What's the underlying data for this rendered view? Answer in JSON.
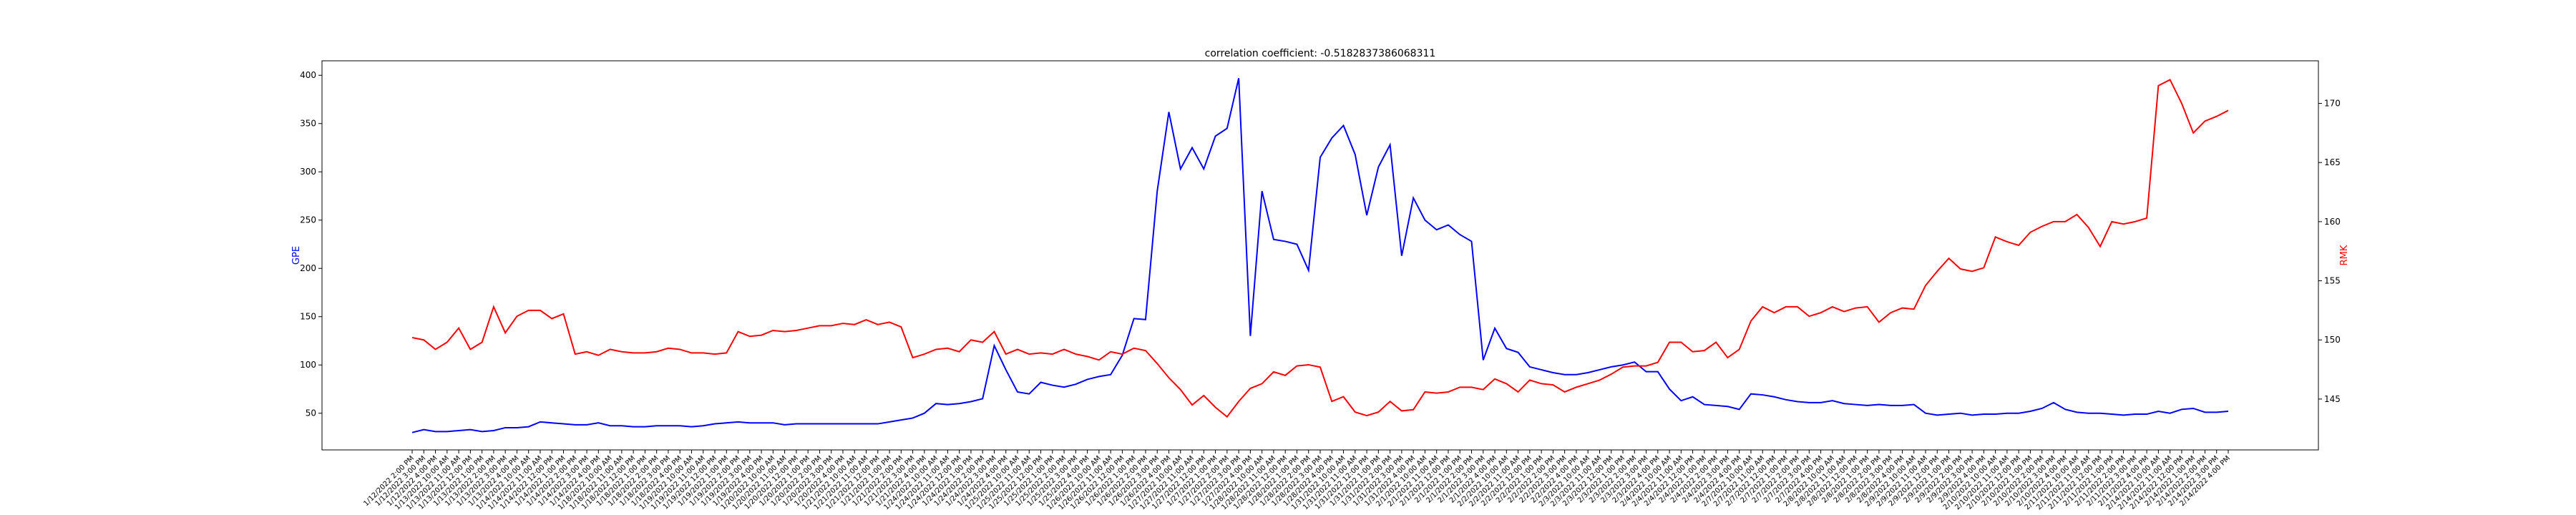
{
  "chart_data": {
    "type": "line",
    "title": "correlation coefficient: -0.5182837386068311",
    "y_label": "GPE",
    "y2_label": "RMK",
    "categories": [
      "1/12/2022 2:00 PM",
      "1/12/2022 3:00 PM",
      "1/12/2022 4:00 PM",
      "1/13/2022 10:00 AM",
      "1/13/2022 11:00 AM",
      "1/13/2022 12:00 PM",
      "1/13/2022 1:00 PM",
      "1/13/2022 2:00 PM",
      "1/13/2022 3:00 PM",
      "1/13/2022 4:00 PM",
      "1/14/2022 10:00 AM",
      "1/14/2022 11:00 AM",
      "1/14/2022 12:00 PM",
      "1/14/2022 1:00 PM",
      "1/14/2022 2:00 PM",
      "1/14/2022 3:00 PM",
      "1/14/2022 4:00 PM",
      "1/18/2022 10:00 AM",
      "1/18/2022 11:00 AM",
      "1/18/2022 12:00 PM",
      "1/18/2022 1:00 PM",
      "1/18/2022 2:00 PM",
      "1/18/2022 3:00 PM",
      "1/18/2022 4:00 PM",
      "1/19/2022 10:00 AM",
      "1/19/2022 11:00 AM",
      "1/19/2022 12:00 PM",
      "1/19/2022 1:00 PM",
      "1/19/2022 2:00 PM",
      "1/19/2022 3:00 PM",
      "1/19/2022 4:00 PM",
      "1/20/2022 10:00 AM",
      "1/20/2022 11:00 AM",
      "1/20/2022 12:00 PM",
      "1/20/2022 1:00 PM",
      "1/20/2022 2:00 PM",
      "1/20/2022 3:00 PM",
      "1/20/2022 4:00 PM",
      "1/21/2022 10:00 AM",
      "1/21/2022 11:00 AM",
      "1/21/2022 12:00 PM",
      "1/21/2022 1:00 PM",
      "1/21/2022 2:00 PM",
      "1/21/2022 3:00 PM",
      "1/21/2022 4:00 PM",
      "1/24/2022 10:00 AM",
      "1/24/2022 11:00 AM",
      "1/24/2022 12:00 PM",
      "1/24/2022 1:00 PM",
      "1/24/2022 2:00 PM",
      "1/24/2022 3:00 PM",
      "1/24/2022 4:00 PM",
      "1/25/2022 10:00 AM",
      "1/25/2022 11:00 AM",
      "1/25/2022 12:00 PM",
      "1/25/2022 1:00 PM",
      "1/25/2022 2:00 PM",
      "1/25/2022 3:00 PM",
      "1/25/2022 4:00 PM",
      "1/26/2022 10:00 AM",
      "1/26/2022 11:00 AM",
      "1/26/2022 12:00 PM",
      "1/26/2022 1:00 PM",
      "1/26/2022 2:00 PM",
      "1/26/2022 3:00 PM",
      "1/26/2022 4:00 PM",
      "1/27/2022 10:00 AM",
      "1/27/2022 11:00 AM",
      "1/27/2022 12:00 PM",
      "1/27/2022 1:00 PM",
      "1/27/2022 2:00 PM",
      "1/27/2022 3:00 PM",
      "1/27/2022 4:00 PM",
      "1/28/2022 10:00 AM",
      "1/28/2022 11:00 AM",
      "1/28/2022 12:00 PM",
      "1/28/2022 1:00 PM",
      "1/28/2022 2:00 PM",
      "1/28/2022 3:00 PM",
      "1/28/2022 4:00 PM",
      "1/31/2022 10:00 AM",
      "1/31/2022 11:00 AM",
      "1/31/2022 12:00 PM",
      "1/31/2022 1:00 PM",
      "1/31/2022 2:00 PM",
      "1/31/2022 3:00 PM",
      "1/31/2022 4:00 PM",
      "2/1/2022 10:00 AM",
      "2/1/2022 11:00 AM",
      "2/1/2022 12:00 PM",
      "2/1/2022 1:00 PM",
      "2/1/2022 2:00 PM",
      "2/1/2022 3:00 PM",
      "2/1/2022 4:00 PM",
      "2/2/2022 10:00 AM",
      "2/2/2022 11:00 AM",
      "2/2/2022 12:00 PM",
      "2/2/2022 1:00 PM",
      "2/2/2022 2:00 PM",
      "2/2/2022 3:00 PM",
      "2/2/2022 4:00 PM",
      "2/3/2022 10:00 AM",
      "2/3/2022 11:00 AM",
      "2/3/2022 12:00 PM",
      "2/3/2022 1:00 PM",
      "2/3/2022 2:00 PM",
      "2/3/2022 3:00 PM",
      "2/3/2022 4:00 PM",
      "2/4/2022 10:00 AM",
      "2/4/2022 11:00 AM",
      "2/4/2022 12:00 PM",
      "2/4/2022 1:00 PM",
      "2/4/2022 2:00 PM",
      "2/4/2022 3:00 PM",
      "2/4/2022 4:00 PM",
      "2/7/2022 10:00 AM",
      "2/7/2022 11:00 AM",
      "2/7/2022 12:00 PM",
      "2/7/2022 1:00 PM",
      "2/7/2022 2:00 PM",
      "2/7/2022 3:00 PM",
      "2/7/2022 4:00 PM",
      "2/8/2022 10:00 AM",
      "2/8/2022 11:00 AM",
      "2/8/2022 12:00 PM",
      "2/8/2022 1:00 PM",
      "2/8/2022 2:00 PM",
      "2/8/2022 3:00 PM",
      "2/8/2022 4:00 PM",
      "2/9/2022 10:00 AM",
      "2/9/2022 11:00 AM",
      "2/9/2022 12:00 PM",
      "2/9/2022 1:00 PM",
      "2/9/2022 2:00 PM",
      "2/9/2022 3:00 PM",
      "2/9/2022 4:00 PM",
      "2/10/2022 10:00 AM",
      "2/10/2022 11:00 AM",
      "2/10/2022 12:00 PM",
      "2/10/2022 1:00 PM",
      "2/10/2022 2:00 PM",
      "2/10/2022 3:00 PM",
      "2/10/2022 4:00 PM",
      "2/11/2022 10:00 AM",
      "2/11/2022 11:00 AM",
      "2/11/2022 12:00 PM",
      "2/11/2022 1:00 PM",
      "2/11/2022 2:00 PM",
      "2/11/2022 3:00 PM",
      "2/11/2022 4:00 PM",
      "2/14/2022 10:00 AM",
      "2/14/2022 11:00 AM",
      "2/14/2022 12:00 PM",
      "2/14/2022 1:00 PM",
      "2/14/2022 2:00 PM",
      "2/14/2022 3:00 PM",
      "2/14/2022 4:00 PM"
    ],
    "series": [
      {
        "name": "GPE",
        "color": "#0000ff",
        "axis": "y",
        "values": [
          30,
          33,
          31,
          31,
          32,
          33,
          31,
          32,
          35,
          35,
          36,
          41,
          40,
          39,
          38,
          38,
          40,
          37,
          37,
          36,
          36,
          37,
          37,
          37,
          36,
          37,
          39,
          40,
          41,
          40,
          40,
          40,
          38,
          39,
          39,
          39,
          39,
          39,
          39,
          39,
          39,
          41,
          43,
          45,
          50,
          60,
          59,
          60,
          62,
          65,
          120,
          95,
          72,
          70,
          82,
          79,
          77,
          80,
          85,
          88,
          90,
          110,
          148,
          147,
          280,
          362,
          303,
          325,
          303,
          337,
          345,
          397,
          130,
          280,
          230,
          228,
          225,
          198,
          315,
          335,
          348,
          318,
          255,
          305,
          328,
          213,
          273,
          250,
          240,
          245,
          235,
          228,
          105,
          138,
          117,
          113,
          98,
          95,
          92,
          90,
          90,
          92,
          95,
          98,
          100,
          103,
          93,
          93,
          75,
          63,
          67,
          59,
          58,
          57,
          54,
          70,
          69,
          67,
          64,
          62,
          61,
          61,
          63,
          60,
          59,
          58,
          59,
          58,
          58,
          59,
          50,
          48,
          49,
          50,
          48,
          49,
          49,
          50,
          50,
          52,
          55,
          61,
          54,
          51,
          50,
          50,
          49,
          48,
          49,
          49,
          52,
          50,
          54,
          55,
          51,
          51,
          52
        ]
      },
      {
        "name": "RMK",
        "color": "#ff0000",
        "axis": "y2",
        "values": [
          150.2,
          150,
          149.2,
          149.8,
          151,
          149.2,
          149.8,
          152.8,
          150.6,
          152,
          152.5,
          152.5,
          151.8,
          152.2,
          148.8,
          149,
          148.7,
          149.2,
          149,
          148.9,
          148.9,
          149,
          149.3,
          149.2,
          148.9,
          148.9,
          148.8,
          148.9,
          150.7,
          150.3,
          150.4,
          150.8,
          150.7,
          150.8,
          151,
          151.2,
          151.2,
          151.4,
          151.3,
          151.7,
          151.3,
          151.5,
          151.1,
          148.5,
          148.8,
          149.2,
          149.3,
          149,
          150,
          149.8,
          150.7,
          148.8,
          149.2,
          148.8,
          148.9,
          148.8,
          149.2,
          148.8,
          148.6,
          148.3,
          149,
          148.8,
          149.3,
          149.1,
          148,
          146.8,
          145.8,
          144.5,
          145.3,
          144.3,
          143.5,
          144.8,
          145.9,
          146.3,
          147.3,
          147,
          147.8,
          147.9,
          147.7,
          144.8,
          145.2,
          143.9,
          143.6,
          143.9,
          144.8,
          144,
          144.1,
          145.6,
          145.5,
          145.6,
          146,
          146,
          145.8,
          146.7,
          146.3,
          145.6,
          146.6,
          146.3,
          146.2,
          145.6,
          146,
          146.3,
          146.6,
          147.1,
          147.7,
          147.8,
          147.8,
          148.1,
          149.8,
          149.8,
          149,
          149.1,
          149.8,
          148.5,
          149.2,
          151.6,
          152.8,
          152.3,
          152.8,
          152.8,
          152,
          152.3,
          152.8,
          152.4,
          152.7,
          152.8,
          151.5,
          152.3,
          152.7,
          152.6,
          154.6,
          155.8,
          156.9,
          156,
          155.8,
          156.1,
          158.7,
          158.3,
          158,
          159.1,
          159.6,
          160,
          160,
          160.6,
          159.5,
          157.9,
          160,
          159.8,
          160,
          160.3,
          171.5,
          172,
          170,
          167.5,
          168.5,
          168.9,
          169.4
        ]
      }
    ],
    "ylim": [
      12,
      415
    ],
    "yticks": [
      50,
      100,
      150,
      200,
      250,
      300,
      350,
      400
    ],
    "y2lim": [
      140.7,
      173.6
    ],
    "y2ticks": [
      145,
      150,
      155,
      160,
      165,
      170
    ],
    "grid": false
  }
}
